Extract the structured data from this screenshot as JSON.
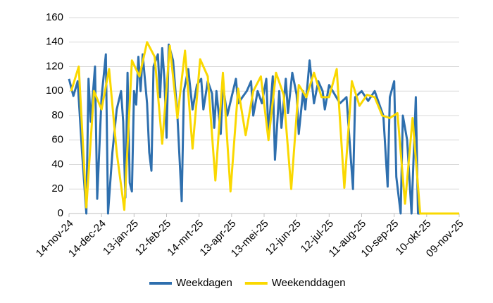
{
  "chart_data": {
    "type": "line",
    "xlim": [
      "2024-11-14",
      "2025-11-09"
    ],
    "xticks": [
      {
        "value": "2024-11-14",
        "label": "14-nov-24"
      },
      {
        "value": "2024-12-14",
        "label": "14-dec-24"
      },
      {
        "value": "2025-01-13",
        "label": "13-jan-25"
      },
      {
        "value": "2025-02-12",
        "label": "12-feb-25"
      },
      {
        "value": "2025-03-14",
        "label": "14-mrt-25"
      },
      {
        "value": "2025-04-13",
        "label": "13-apr-25"
      },
      {
        "value": "2025-05-13",
        "label": "13-mei-25"
      },
      {
        "value": "2025-06-12",
        "label": "12-jun-25"
      },
      {
        "value": "2025-07-12",
        "label": "12-jul-25"
      },
      {
        "value": "2025-08-11",
        "label": "11-aug-25"
      },
      {
        "value": "2025-09-10",
        "label": "10-sep-25"
      },
      {
        "value": "2025-10-10",
        "label": "10-okt-25"
      },
      {
        "value": "2025-11-09",
        "label": "09-nov-25"
      }
    ],
    "ylim": [
      0,
      160
    ],
    "yticks": [
      0,
      20,
      40,
      60,
      80,
      100,
      120,
      140,
      160
    ],
    "grid": true,
    "legend": "bottom",
    "series": [
      {
        "name": "Weekdagen",
        "color": "#2e6fae",
        "x": [
          "2024-11-14",
          "2024-11-18",
          "2024-11-22",
          "2024-11-26",
          "2024-11-30",
          "2024-12-02",
          "2024-12-04",
          "2024-12-08",
          "2024-12-10",
          "2024-12-14",
          "2024-12-18",
          "2024-12-20",
          "2024-12-24",
          "2024-12-28",
          "2025-01-01",
          "2025-01-03",
          "2025-01-05",
          "2025-01-07",
          "2025-01-09",
          "2025-01-11",
          "2025-01-13",
          "2025-01-15",
          "2025-01-17",
          "2025-01-19",
          "2025-01-21",
          "2025-01-25",
          "2025-01-27",
          "2025-01-29",
          "2025-01-31",
          "2025-02-04",
          "2025-02-06",
          "2025-02-08",
          "2025-02-10",
          "2025-02-12",
          "2025-02-14",
          "2025-02-18",
          "2025-02-22",
          "2025-02-26",
          "2025-02-28",
          "2025-03-04",
          "2025-03-08",
          "2025-03-12",
          "2025-03-16",
          "2025-03-18",
          "2025-03-22",
          "2025-03-26",
          "2025-03-28",
          "2025-03-30",
          "2025-04-03",
          "2025-04-05",
          "2025-04-09",
          "2025-04-13",
          "2025-04-17",
          "2025-04-19",
          "2025-04-23",
          "2025-04-27",
          "2025-05-01",
          "2025-05-03",
          "2025-05-07",
          "2025-05-11",
          "2025-05-15",
          "2025-05-17",
          "2025-05-21",
          "2025-05-23",
          "2025-05-27",
          "2025-05-29",
          "2025-06-02",
          "2025-06-04",
          "2025-06-08",
          "2025-06-12",
          "2025-06-14",
          "2025-06-18",
          "2025-06-20",
          "2025-06-24",
          "2025-06-28",
          "2025-07-02",
          "2025-07-06",
          "2025-07-08",
          "2025-07-12",
          "2025-07-22",
          "2025-07-28",
          "2025-08-03",
          "2025-08-05",
          "2025-08-11",
          "2025-08-17",
          "2025-08-23",
          "2025-08-27",
          "2025-08-31",
          "2025-09-04",
          "2025-09-06",
          "2025-09-10",
          "2025-09-12",
          "2025-09-16",
          "2025-09-18",
          "2025-09-22",
          "2025-09-26",
          "2025-09-30",
          "2025-10-02",
          "2025-10-10",
          "2025-11-09"
        ],
        "values": [
          110,
          96,
          108,
          50,
          0,
          110,
          75,
          120,
          12,
          95,
          130,
          0,
          50,
          85,
          100,
          75,
          13,
          115,
          25,
          18,
          100,
          89,
          128,
          100,
          130,
          90,
          50,
          35,
          120,
          130,
          95,
          135,
          110,
          62,
          138,
          125,
          80,
          10,
          100,
          118,
          85,
          105,
          110,
          85,
          108,
          98,
          70,
          100,
          65,
          105,
          80,
          95,
          110,
          90,
          95,
          100,
          108,
          80,
          100,
          90,
          110,
          65,
          112,
          44,
          100,
          70,
          110,
          82,
          115,
          97,
          65,
          100,
          85,
          125,
          90,
          108,
          100,
          85,
          105,
          90,
          95,
          20,
          95,
          100,
          92,
          100,
          90,
          80,
          22,
          95,
          108,
          30,
          0,
          80,
          60,
          0,
          95,
          0,
          0,
          0
        ]
      },
      {
        "name": "Weekenddagen",
        "color": "#fad800",
        "x": [
          "2024-11-16",
          "2024-11-23",
          "2024-11-30",
          "2024-12-07",
          "2024-12-14",
          "2024-12-21",
          "2024-12-28",
          "2025-01-04",
          "2025-01-11",
          "2025-01-18",
          "2025-01-25",
          "2025-02-01",
          "2025-02-08",
          "2025-02-15",
          "2025-02-22",
          "2025-03-01",
          "2025-03-08",
          "2025-03-15",
          "2025-03-22",
          "2025-03-29",
          "2025-04-05",
          "2025-04-12",
          "2025-04-19",
          "2025-04-26",
          "2025-05-03",
          "2025-05-10",
          "2025-05-17",
          "2025-05-24",
          "2025-05-31",
          "2025-06-07",
          "2025-06-14",
          "2025-06-21",
          "2025-06-28",
          "2025-07-05",
          "2025-07-12",
          "2025-07-19",
          "2025-07-26",
          "2025-08-02",
          "2025-08-09",
          "2025-08-16",
          "2025-08-23",
          "2025-08-30",
          "2025-09-06",
          "2025-09-13",
          "2025-09-20",
          "2025-09-27",
          "2025-10-04",
          "2025-11-09"
        ],
        "values": [
          100,
          120,
          5,
          100,
          85,
          118,
          50,
          3,
          125,
          112,
          140,
          128,
          57,
          137,
          78,
          133,
          53,
          126,
          112,
          27,
          115,
          18,
          102,
          64,
          100,
          112,
          60,
          115,
          97,
          20,
          105,
          95,
          115,
          95,
          95,
          118,
          21,
          108,
          88,
          97,
          95,
          80,
          78,
          82,
          8,
          78,
          0,
          0
        ]
      }
    ]
  }
}
